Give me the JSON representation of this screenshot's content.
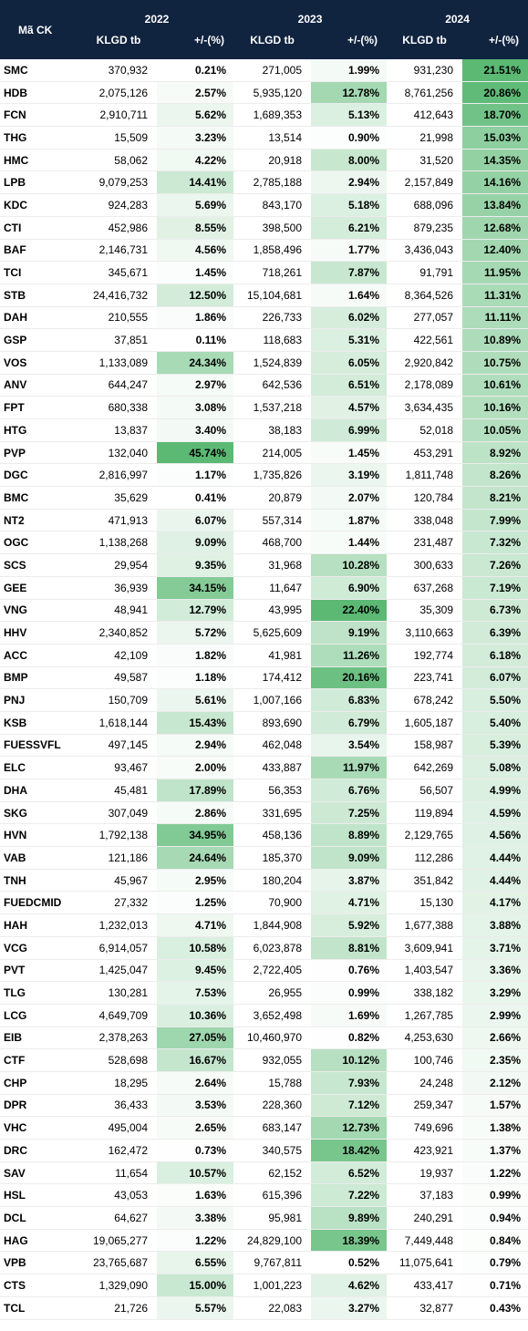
{
  "header": {
    "ticker_label": "Mã CK",
    "years": [
      "2022",
      "2023",
      "2024"
    ],
    "volume_label": "KLGD tb",
    "change_label": "+/-(%)"
  },
  "rows": [
    {
      "ticker": "SMC",
      "v2022": "370,932",
      "c2022": "0.21%",
      "v2023": "271,005",
      "c2023": "1.99%",
      "v2024": "931,230",
      "c2024": "21.51%"
    },
    {
      "ticker": "HDB",
      "v2022": "2,075,126",
      "c2022": "2.57%",
      "v2023": "5,935,120",
      "c2023": "12.78%",
      "v2024": "8,761,256",
      "c2024": "20.86%"
    },
    {
      "ticker": "FCN",
      "v2022": "2,910,711",
      "c2022": "5.62%",
      "v2023": "1,689,353",
      "c2023": "5.13%",
      "v2024": "412,643",
      "c2024": "18.70%"
    },
    {
      "ticker": "THG",
      "v2022": "15,509",
      "c2022": "3.23%",
      "v2023": "13,514",
      "c2023": "0.90%",
      "v2024": "21,998",
      "c2024": "15.03%"
    },
    {
      "ticker": "HMC",
      "v2022": "58,062",
      "c2022": "4.22%",
      "v2023": "20,918",
      "c2023": "8.00%",
      "v2024": "31,520",
      "c2024": "14.35%"
    },
    {
      "ticker": "LPB",
      "v2022": "9,079,253",
      "c2022": "14.41%",
      "v2023": "2,785,188",
      "c2023": "2.94%",
      "v2024": "2,157,849",
      "c2024": "14.16%"
    },
    {
      "ticker": "KDC",
      "v2022": "924,283",
      "c2022": "5.69%",
      "v2023": "843,170",
      "c2023": "5.18%",
      "v2024": "688,096",
      "c2024": "13.84%"
    },
    {
      "ticker": "CTI",
      "v2022": "452,986",
      "c2022": "8.55%",
      "v2023": "398,500",
      "c2023": "6.21%",
      "v2024": "879,235",
      "c2024": "12.68%"
    },
    {
      "ticker": "BAF",
      "v2022": "2,146,731",
      "c2022": "4.56%",
      "v2023": "1,858,496",
      "c2023": "1.77%",
      "v2024": "3,436,043",
      "c2024": "12.40%"
    },
    {
      "ticker": "TCI",
      "v2022": "345,671",
      "c2022": "1.45%",
      "v2023": "718,261",
      "c2023": "7.87%",
      "v2024": "91,791",
      "c2024": "11.95%"
    },
    {
      "ticker": "STB",
      "v2022": "24,416,732",
      "c2022": "12.50%",
      "v2023": "15,104,681",
      "c2023": "1.64%",
      "v2024": "8,364,526",
      "c2024": "11.31%"
    },
    {
      "ticker": "DAH",
      "v2022": "210,555",
      "c2022": "1.86%",
      "v2023": "226,733",
      "c2023": "6.02%",
      "v2024": "277,057",
      "c2024": "11.11%"
    },
    {
      "ticker": "GSP",
      "v2022": "37,851",
      "c2022": "0.11%",
      "v2023": "118,683",
      "c2023": "5.31%",
      "v2024": "422,561",
      "c2024": "10.89%"
    },
    {
      "ticker": "VOS",
      "v2022": "1,133,089",
      "c2022": "24.34%",
      "v2023": "1,524,839",
      "c2023": "6.05%",
      "v2024": "2,920,842",
      "c2024": "10.75%"
    },
    {
      "ticker": "ANV",
      "v2022": "644,247",
      "c2022": "2.97%",
      "v2023": "642,536",
      "c2023": "6.51%",
      "v2024": "2,178,089",
      "c2024": "10.61%"
    },
    {
      "ticker": "FPT",
      "v2022": "680,338",
      "c2022": "3.08%",
      "v2023": "1,537,218",
      "c2023": "4.57%",
      "v2024": "3,634,435",
      "c2024": "10.16%"
    },
    {
      "ticker": "HTG",
      "v2022": "13,837",
      "c2022": "3.40%",
      "v2023": "38,183",
      "c2023": "6.99%",
      "v2024": "52,018",
      "c2024": "10.05%"
    },
    {
      "ticker": "PVP",
      "v2022": "132,040",
      "c2022": "45.74%",
      "v2023": "214,005",
      "c2023": "1.45%",
      "v2024": "453,291",
      "c2024": "8.92%"
    },
    {
      "ticker": "DGC",
      "v2022": "2,816,997",
      "c2022": "1.17%",
      "v2023": "1,735,826",
      "c2023": "3.19%",
      "v2024": "1,811,748",
      "c2024": "8.26%"
    },
    {
      "ticker": "BMC",
      "v2022": "35,629",
      "c2022": "0.41%",
      "v2023": "20,879",
      "c2023": "2.07%",
      "v2024": "120,784",
      "c2024": "8.21%"
    },
    {
      "ticker": "NT2",
      "v2022": "471,913",
      "c2022": "6.07%",
      "v2023": "557,314",
      "c2023": "1.87%",
      "v2024": "338,048",
      "c2024": "7.99%"
    },
    {
      "ticker": "OGC",
      "v2022": "1,138,268",
      "c2022": "9.09%",
      "v2023": "468,700",
      "c2023": "1.44%",
      "v2024": "231,487",
      "c2024": "7.32%"
    },
    {
      "ticker": "SCS",
      "v2022": "29,954",
      "c2022": "9.35%",
      "v2023": "31,968",
      "c2023": "10.28%",
      "v2024": "300,633",
      "c2024": "7.26%"
    },
    {
      "ticker": "GEE",
      "v2022": "36,939",
      "c2022": "34.15%",
      "v2023": "11,647",
      "c2023": "6.90%",
      "v2024": "637,268",
      "c2024": "7.19%"
    },
    {
      "ticker": "VNG",
      "v2022": "48,941",
      "c2022": "12.79%",
      "v2023": "43,995",
      "c2023": "22.40%",
      "v2024": "35,309",
      "c2024": "6.73%"
    },
    {
      "ticker": "HHV",
      "v2022": "2,340,852",
      "c2022": "5.72%",
      "v2023": "5,625,609",
      "c2023": "9.19%",
      "v2024": "3,110,663",
      "c2024": "6.39%"
    },
    {
      "ticker": "ACC",
      "v2022": "42,109",
      "c2022": "1.82%",
      "v2023": "41,981",
      "c2023": "11.26%",
      "v2024": "192,774",
      "c2024": "6.18%"
    },
    {
      "ticker": "BMP",
      "v2022": "49,587",
      "c2022": "1.18%",
      "v2023": "174,412",
      "c2023": "20.16%",
      "v2024": "223,741",
      "c2024": "6.07%"
    },
    {
      "ticker": "PNJ",
      "v2022": "150,709",
      "c2022": "5.61%",
      "v2023": "1,007,166",
      "c2023": "6.83%",
      "v2024": "678,242",
      "c2024": "5.50%"
    },
    {
      "ticker": "KSB",
      "v2022": "1,618,144",
      "c2022": "15.43%",
      "v2023": "893,690",
      "c2023": "6.79%",
      "v2024": "1,605,187",
      "c2024": "5.40%"
    },
    {
      "ticker": "FUESSVFL",
      "v2022": "497,145",
      "c2022": "2.94%",
      "v2023": "462,048",
      "c2023": "3.54%",
      "v2024": "158,987",
      "c2024": "5.39%"
    },
    {
      "ticker": "ELC",
      "v2022": "93,467",
      "c2022": "2.00%",
      "v2023": "433,887",
      "c2023": "11.97%",
      "v2024": "642,269",
      "c2024": "5.08%"
    },
    {
      "ticker": "DHA",
      "v2022": "45,481",
      "c2022": "17.89%",
      "v2023": "56,353",
      "c2023": "6.76%",
      "v2024": "56,507",
      "c2024": "4.99%"
    },
    {
      "ticker": "SKG",
      "v2022": "307,049",
      "c2022": "2.86%",
      "v2023": "331,695",
      "c2023": "7.25%",
      "v2024": "119,894",
      "c2024": "4.59%"
    },
    {
      "ticker": "HVN",
      "v2022": "1,792,138",
      "c2022": "34.95%",
      "v2023": "458,136",
      "c2023": "8.89%",
      "v2024": "2,129,765",
      "c2024": "4.56%"
    },
    {
      "ticker": "VAB",
      "v2022": "121,186",
      "c2022": "24.64%",
      "v2023": "185,370",
      "c2023": "9.09%",
      "v2024": "112,286",
      "c2024": "4.44%"
    },
    {
      "ticker": "TNH",
      "v2022": "45,967",
      "c2022": "2.95%",
      "v2023": "180,204",
      "c2023": "3.87%",
      "v2024": "351,842",
      "c2024": "4.44%"
    },
    {
      "ticker": "FUEDCMID",
      "v2022": "27,332",
      "c2022": "1.25%",
      "v2023": "70,900",
      "c2023": "4.71%",
      "v2024": "15,130",
      "c2024": "4.17%"
    },
    {
      "ticker": "HAH",
      "v2022": "1,232,013",
      "c2022": "4.71%",
      "v2023": "1,844,908",
      "c2023": "5.92%",
      "v2024": "1,677,388",
      "c2024": "3.88%"
    },
    {
      "ticker": "VCG",
      "v2022": "6,914,057",
      "c2022": "10.58%",
      "v2023": "6,023,878",
      "c2023": "8.81%",
      "v2024": "3,609,941",
      "c2024": "3.71%"
    },
    {
      "ticker": "PVT",
      "v2022": "1,425,047",
      "c2022": "9.45%",
      "v2023": "2,722,405",
      "c2023": "0.76%",
      "v2024": "1,403,547",
      "c2024": "3.36%"
    },
    {
      "ticker": "TLG",
      "v2022": "130,281",
      "c2022": "7.53%",
      "v2023": "26,955",
      "c2023": "0.99%",
      "v2024": "338,182",
      "c2024": "3.29%"
    },
    {
      "ticker": "LCG",
      "v2022": "4,649,709",
      "c2022": "10.36%",
      "v2023": "3,652,498",
      "c2023": "1.69%",
      "v2024": "1,267,785",
      "c2024": "2.99%"
    },
    {
      "ticker": "EIB",
      "v2022": "2,378,263",
      "c2022": "27.05%",
      "v2023": "10,460,970",
      "c2023": "0.82%",
      "v2024": "4,253,630",
      "c2024": "2.66%"
    },
    {
      "ticker": "CTF",
      "v2022": "528,698",
      "c2022": "16.67%",
      "v2023": "932,055",
      "c2023": "10.12%",
      "v2024": "100,746",
      "c2024": "2.35%"
    },
    {
      "ticker": "CHP",
      "v2022": "18,295",
      "c2022": "2.64%",
      "v2023": "15,788",
      "c2023": "7.93%",
      "v2024": "24,248",
      "c2024": "2.12%"
    },
    {
      "ticker": "DPR",
      "v2022": "36,433",
      "c2022": "3.53%",
      "v2023": "228,360",
      "c2023": "7.12%",
      "v2024": "259,347",
      "c2024": "1.57%"
    },
    {
      "ticker": "VHC",
      "v2022": "495,004",
      "c2022": "2.65%",
      "v2023": "683,147",
      "c2023": "12.73%",
      "v2024": "749,696",
      "c2024": "1.38%"
    },
    {
      "ticker": "DRC",
      "v2022": "162,472",
      "c2022": "0.73%",
      "v2023": "340,575",
      "c2023": "18.42%",
      "v2024": "423,921",
      "c2024": "1.37%"
    },
    {
      "ticker": "SAV",
      "v2022": "11,654",
      "c2022": "10.57%",
      "v2023": "62,152",
      "c2023": "6.52%",
      "v2024": "19,937",
      "c2024": "1.22%"
    },
    {
      "ticker": "HSL",
      "v2022": "43,053",
      "c2022": "1.63%",
      "v2023": "615,396",
      "c2023": "7.22%",
      "v2024": "37,183",
      "c2024": "0.99%"
    },
    {
      "ticker": "DCL",
      "v2022": "64,627",
      "c2022": "3.38%",
      "v2023": "95,981",
      "c2023": "9.89%",
      "v2024": "240,291",
      "c2024": "0.94%"
    },
    {
      "ticker": "HAG",
      "v2022": "19,065,277",
      "c2022": "1.22%",
      "v2023": "24,829,100",
      "c2023": "18.39%",
      "v2024": "7,449,448",
      "c2024": "0.84%"
    },
    {
      "ticker": "VPB",
      "v2022": "23,765,687",
      "c2022": "6.55%",
      "v2023": "9,767,811",
      "c2023": "0.52%",
      "v2024": "11,075,641",
      "c2024": "0.79%"
    },
    {
      "ticker": "CTS",
      "v2022": "1,329,090",
      "c2022": "15.00%",
      "v2023": "1,001,223",
      "c2023": "4.62%",
      "v2024": "433,417",
      "c2024": "0.71%"
    },
    {
      "ticker": "TCL",
      "v2022": "21,726",
      "c2022": "5.57%",
      "v2023": "22,083",
      "c2023": "3.27%",
      "v2024": "32,877",
      "c2024": "0.43%"
    }
  ],
  "colors": {
    "header_bg": "#10233f",
    "header_text": "#ffffff",
    "heat_low": "#ffffff",
    "heat_high": "#5bb974"
  }
}
